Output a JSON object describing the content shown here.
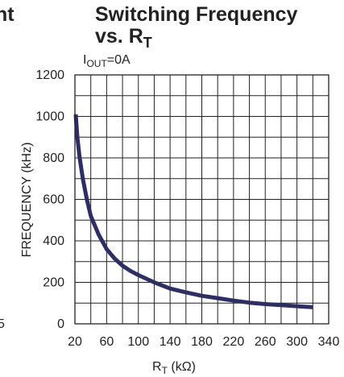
{
  "left_fragment": {
    "top_text": "nt",
    "bottom_text": "5"
  },
  "chart_data": {
    "type": "line",
    "title_line1": "Switching Frequency",
    "title_line2_prefix": "vs. R",
    "title_line2_sub": "T",
    "condition": {
      "prefix": "I",
      "sub": "OUT",
      "suffix": "=0A"
    },
    "xlabel": {
      "main": "R",
      "sub": "T",
      "unit": " (kΩ)"
    },
    "ylabel": "FREQUENCY (kHz)",
    "xlim": [
      20,
      340
    ],
    "ylim": [
      0,
      1200
    ],
    "xticks": [
      20,
      60,
      100,
      140,
      180,
      220,
      260,
      300,
      340
    ],
    "yticks": [
      0,
      200,
      400,
      600,
      800,
      1000,
      1200
    ],
    "xgrid_step": 20,
    "ygrid_step": 100,
    "grid": true,
    "series": [
      {
        "color": "#2e2e66",
        "x": [
          21,
          23,
          26,
          30,
          35,
          40,
          50,
          60,
          70,
          80,
          90,
          100,
          120,
          140,
          160,
          180,
          200,
          220,
          240,
          260,
          280,
          300,
          320
        ],
        "y": [
          1010,
          900,
          800,
          700,
          600,
          520,
          430,
          360,
          315,
          280,
          255,
          235,
          200,
          170,
          152,
          135,
          124,
          112,
          102,
          95,
          90,
          85,
          80
        ]
      }
    ]
  }
}
